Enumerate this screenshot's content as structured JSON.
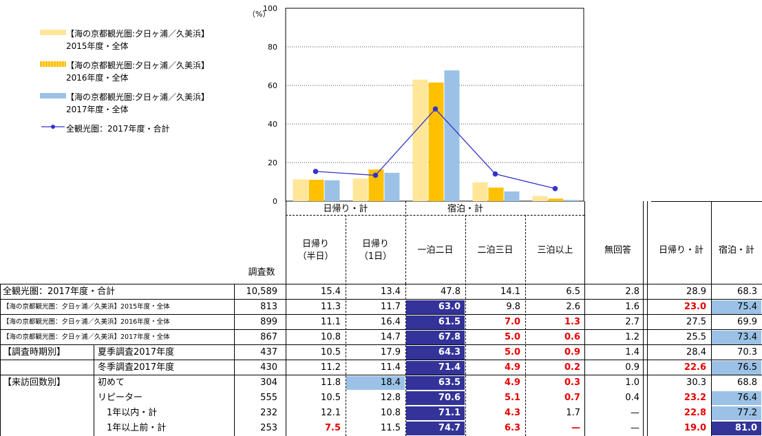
{
  "chart_data": {
    "type": "bar",
    "categories": [
      "日帰り（半日）",
      "日帰り（1日）",
      "一泊二日",
      "二泊三日",
      "三泊以上"
    ],
    "group_labels": [
      "日帰り・計",
      "宿泊・計"
    ],
    "ylim": [
      0,
      100
    ],
    "ylabel": "（%）",
    "yticks": [
      "0",
      "20",
      "40",
      "60",
      "80",
      "100"
    ],
    "series": [
      {
        "name": "【海の京都観光圏:夕日ヶ浦／久美浜】\n2015年度・全体",
        "color": "#ffe699",
        "values": [
          11.3,
          11.7,
          63.0,
          9.8,
          2.6
        ]
      },
      {
        "name": "【海の京都観光圏:夕日ヶ浦／久美浜】\n2016年度・全体",
        "color": "#ffc000",
        "values": [
          11.1,
          16.4,
          61.5,
          7.0,
          1.3
        ]
      },
      {
        "name": "【海の京都観光圏:夕日ヶ浦／久美浜】\n2017年度・全体",
        "color": "#9bc2e6",
        "values": [
          10.8,
          14.7,
          67.8,
          5.0,
          0.6
        ]
      },
      {
        "name": "全観光圏：2017年度・合計",
        "type": "line",
        "color": "#3333cc",
        "values": [
          15.4,
          13.4,
          47.8,
          14.1,
          6.5
        ]
      }
    ]
  },
  "table": {
    "headers": {
      "count": "調査数",
      "c1a": "日帰り",
      "c1b": "（半日）",
      "c2a": "日帰り",
      "c2b": "（1日）",
      "c3": "一泊二日",
      "c4": "二泊三日",
      "c5": "三泊以上",
      "c6": "無回答",
      "c7": "日帰り・計",
      "c8": "宿泊・計"
    },
    "rows": [
      {
        "l1": "全観光圏：2017年度・合計",
        "l2": "",
        "v": [
          "10,589",
          "15.4",
          "13.4",
          "47.8",
          "14.1",
          "6.5",
          "2.8",
          "28.9",
          "68.3"
        ]
      },
      {
        "l1": "【海の京都観光圏：夕日ヶ浦／久美浜】2015年度・全体",
        "l2": "",
        "v": [
          "813",
          "11.3",
          "11.7",
          "63.0",
          "9.8",
          "2.6",
          "1.6",
          "23.0",
          "75.4"
        ]
      },
      {
        "l1": "【海の京都観光圏：夕日ヶ浦／久美浜】2016年度・全体",
        "l2": "",
        "v": [
          "899",
          "11.1",
          "16.4",
          "61.5",
          "7.0",
          "1.3",
          "2.7",
          "27.5",
          "69.9"
        ]
      },
      {
        "l1": "【海の京都観光圏：夕日ヶ浦／久美浜】2017年度・全体",
        "l2": "",
        "v": [
          "867",
          "10.8",
          "14.7",
          "67.8",
          "5.0",
          "0.6",
          "1.2",
          "25.5",
          "73.4"
        ]
      },
      {
        "l1": "【調査時期別】",
        "l2": "夏季調査2017年度",
        "v": [
          "437",
          "10.5",
          "17.9",
          "64.3",
          "5.0",
          "0.9",
          "1.4",
          "28.4",
          "70.3"
        ]
      },
      {
        "l1": "",
        "l2": "冬季調査2017年度",
        "v": [
          "430",
          "11.2",
          "11.4",
          "71.4",
          "4.9",
          "0.2",
          "0.9",
          "22.6",
          "76.5"
        ]
      },
      {
        "l1": "【来訪回数別】",
        "l2": "初めて",
        "v": [
          "304",
          "11.8",
          "18.4",
          "63.5",
          "4.9",
          "0.3",
          "1.0",
          "30.3",
          "68.8"
        ]
      },
      {
        "l1": "",
        "l2": "リピーター",
        "v": [
          "555",
          "10.5",
          "12.8",
          "70.6",
          "5.1",
          "0.7",
          "0.4",
          "23.2",
          "76.4"
        ]
      },
      {
        "l1": "",
        "l2": "　1年以内・計",
        "v": [
          "232",
          "12.1",
          "10.8",
          "71.1",
          "4.3",
          "1.7",
          "—",
          "22.8",
          "77.2"
        ]
      },
      {
        "l1": "",
        "l2": "　1年以上前・計",
        "v": [
          "253",
          "7.5",
          "11.5",
          "74.7",
          "6.3",
          "—",
          "—",
          "19.0",
          "81.0"
        ]
      }
    ]
  }
}
